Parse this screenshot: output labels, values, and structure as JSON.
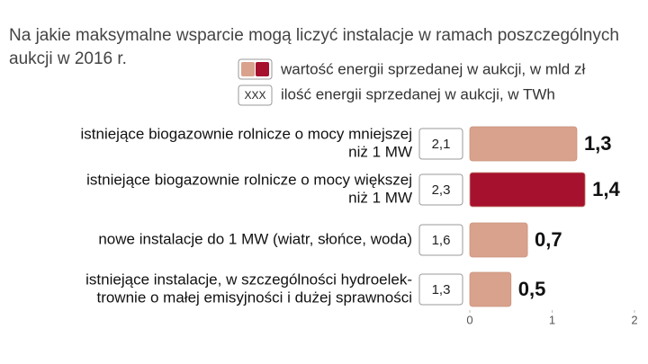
{
  "chart_data": {
    "type": "bar",
    "orientation": "horizontal",
    "title": [
      "Na jakie maksymalne wsparcie mogą liczyć instalacje w ramach poszczególnych",
      "aukcji w 2016 r."
    ],
    "categories": [
      [
        "istniejące biogazownie rolnicze o mocy mniejszej",
        "niż 1 MW"
      ],
      [
        "istniejące biogazownie rolnicze o mocy większej",
        "niż 1 MW"
      ],
      [
        "nowe instalacje do 1 MW (wiatr, słońce, woda)"
      ],
      [
        "istniejące instalacje, w szczególności hydroelek-",
        "trownie o małej emisyjności i dużej sprawności"
      ]
    ],
    "series": [
      {
        "name": "wartość energii sprzedanej w aukcji, w mld zł",
        "colors": [
          "#d9a28c",
          "#a6112e",
          "#d9a28c",
          "#d9a28c"
        ],
        "values": [
          1.3,
          1.4,
          0.7,
          0.5
        ],
        "value_labels": [
          "1,3",
          "1,4",
          "0,7",
          "0,5"
        ]
      },
      {
        "name": "ilość energii sprzedanej w aukcji, w TWh",
        "legend_symbol": "XXX",
        "values": [
          2.1,
          2.3,
          1.6,
          1.3
        ],
        "value_labels": [
          "2,1",
          "2,3",
          "1,6",
          "1,3"
        ]
      }
    ],
    "xlim": [
      0,
      2
    ],
    "xticks": [
      0,
      1,
      2
    ]
  }
}
